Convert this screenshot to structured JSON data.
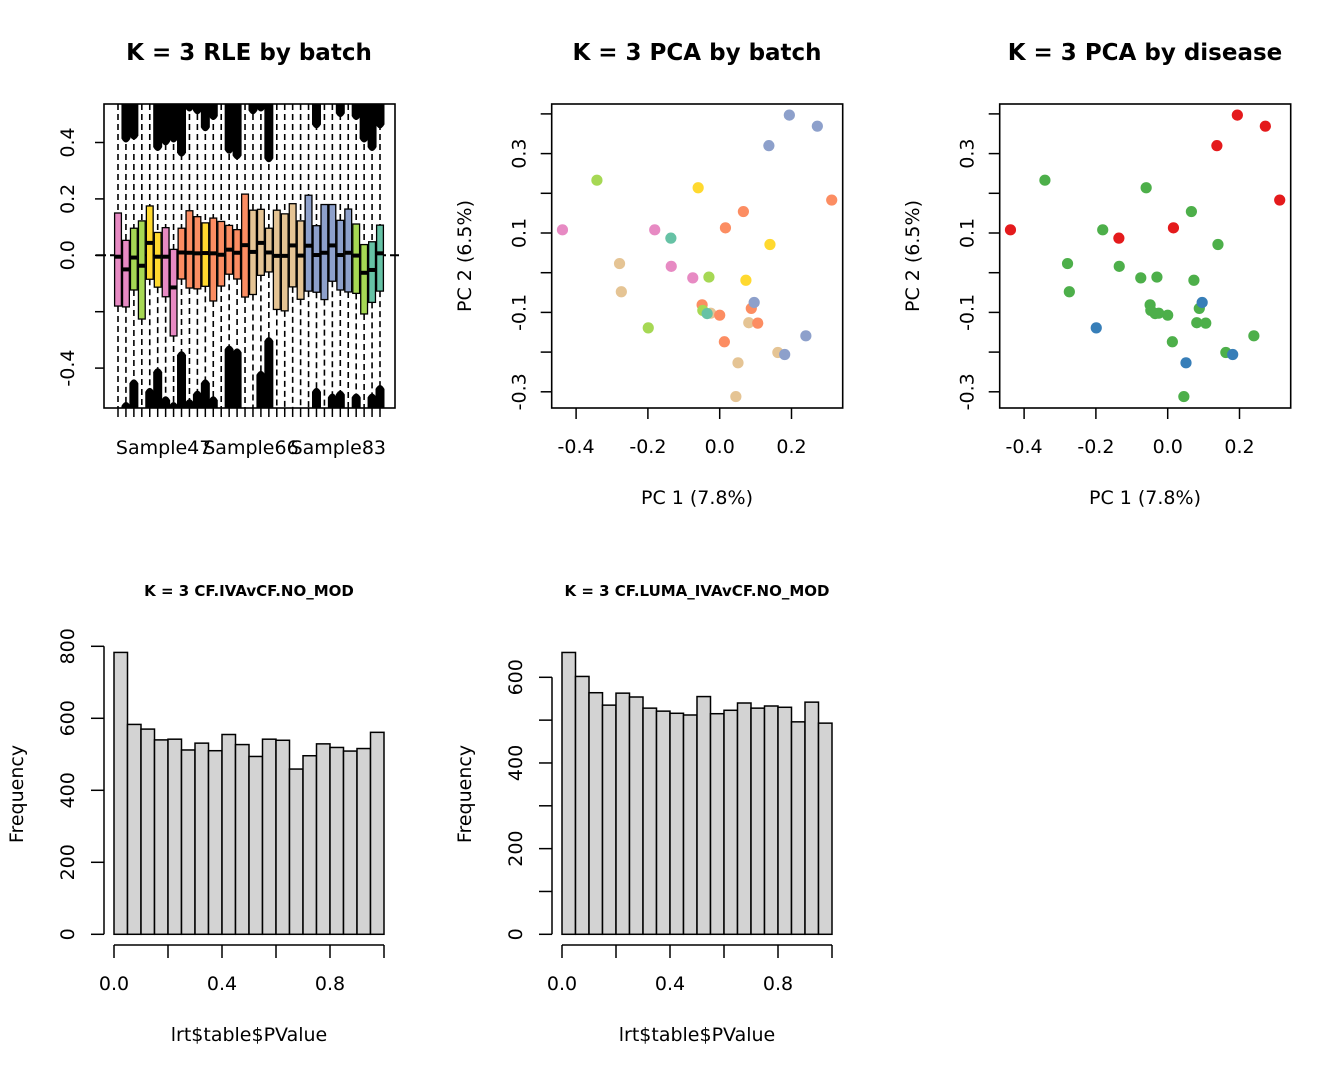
{
  "colors": {
    "set2_pink": "#E78AC3",
    "set2_lime": "#A6D854",
    "set2_yellow": "#FFD92F",
    "set2_orange": "#FC8D62",
    "set2_tan": "#E5C494",
    "set2_blue": "#8DA0CB",
    "set2_teal": "#66C2A5",
    "disease_red": "#E41A1C",
    "disease_blue": "#377EB8",
    "disease_green": "#4DAF4A",
    "hist_fill": "#D3D3D3"
  },
  "chart_data": [
    {
      "id": "rle",
      "type": "boxplot",
      "title": "K = 3 RLE by batch",
      "xlabel": "",
      "ylabel": "",
      "ylim": [
        -0.54,
        0.54
      ],
      "yticks": [
        -0.4,
        -0.2,
        0.0,
        0.2,
        0.4
      ],
      "ytick_labels": [
        "-0.4",
        "",
        "0.0",
        "0.2",
        "0.4"
      ],
      "x_tick_labels": [
        {
          "index": 6,
          "label": "Sample47"
        },
        {
          "index": 17,
          "label": "Sample66"
        },
        {
          "index": 28,
          "label": "Sample83"
        }
      ],
      "reference_line": 0,
      "boxes": [
        {
          "color": "set2_pink",
          "q1": -0.18,
          "median": -0.005,
          "q3": 0.15,
          "upper_outlier_floor": null,
          "lower_outlier_ceiling": null
        },
        {
          "color": "set2_pink",
          "q1": -0.183,
          "median": -0.05,
          "q3": 0.053,
          "upper_outlier_floor": 0.4,
          "lower_outlier_ceiling": -0.52
        },
        {
          "color": "set2_lime",
          "q1": -0.123,
          "median": -0.008,
          "q3": 0.096,
          "upper_outlier_floor": 0.41,
          "lower_outlier_ceiling": -0.44
        },
        {
          "color": "set2_lime",
          "q1": -0.226,
          "median": -0.037,
          "q3": 0.122,
          "upper_outlier_floor": null,
          "lower_outlier_ceiling": null
        },
        {
          "color": "set2_yellow",
          "q1": -0.085,
          "median": 0.044,
          "q3": 0.175,
          "upper_outlier_floor": null,
          "lower_outlier_ceiling": -0.47
        },
        {
          "color": "set2_yellow",
          "q1": -0.113,
          "median": -0.005,
          "q3": 0.081,
          "upper_outlier_floor": 0.37,
          "lower_outlier_ceiling": -0.4
        },
        {
          "color": "set2_pink",
          "q1": -0.147,
          "median": -0.005,
          "q3": 0.098,
          "upper_outlier_floor": 0.39,
          "lower_outlier_ceiling": -0.5
        },
        {
          "color": "set2_pink",
          "q1": -0.286,
          "median": -0.114,
          "q3": 0.021,
          "upper_outlier_floor": 0.4,
          "lower_outlier_ceiling": -0.52
        },
        {
          "color": "set2_orange",
          "q1": -0.084,
          "median": 0.01,
          "q3": 0.096,
          "upper_outlier_floor": 0.35,
          "lower_outlier_ceiling": -0.34
        },
        {
          "color": "set2_orange",
          "q1": -0.116,
          "median": 0.009,
          "q3": 0.158,
          "upper_outlier_floor": 0.51,
          "lower_outlier_ceiling": -0.51
        },
        {
          "color": "set2_orange",
          "q1": -0.119,
          "median": 0.007,
          "q3": 0.137,
          "upper_outlier_floor": 0.5,
          "lower_outlier_ceiling": -0.48
        },
        {
          "color": "set2_yellow",
          "q1": -0.11,
          "median": 0.008,
          "q3": 0.115,
          "upper_outlier_floor": 0.44,
          "lower_outlier_ceiling": -0.44
        },
        {
          "color": "set2_orange",
          "q1": -0.162,
          "median": 0.007,
          "q3": 0.132,
          "upper_outlier_floor": 0.48,
          "lower_outlier_ceiling": -0.5
        },
        {
          "color": "set2_orange",
          "q1": -0.109,
          "median": 0.002,
          "q3": 0.12,
          "upper_outlier_floor": null,
          "lower_outlier_ceiling": null
        },
        {
          "color": "set2_orange",
          "q1": -0.067,
          "median": 0.02,
          "q3": 0.106,
          "upper_outlier_floor": 0.36,
          "lower_outlier_ceiling": -0.32
        },
        {
          "color": "set2_orange",
          "q1": -0.084,
          "median": 0.009,
          "q3": 0.091,
          "upper_outlier_floor": 0.34,
          "lower_outlier_ceiling": -0.33
        },
        {
          "color": "set2_orange",
          "q1": -0.148,
          "median": 0.036,
          "q3": 0.217,
          "upper_outlier_floor": null,
          "lower_outlier_ceiling": null
        },
        {
          "color": "set2_tan",
          "q1": -0.139,
          "median": 0.012,
          "q3": 0.16,
          "upper_outlier_floor": 0.5,
          "lower_outlier_ceiling": null
        },
        {
          "color": "set2_tan",
          "q1": -0.071,
          "median": 0.044,
          "q3": 0.163,
          "upper_outlier_floor": 0.51,
          "lower_outlier_ceiling": -0.41
        },
        {
          "color": "set2_tan",
          "q1": -0.059,
          "median": 0.01,
          "q3": 0.096,
          "upper_outlier_floor": 0.33,
          "lower_outlier_ceiling": -0.29
        },
        {
          "color": "set2_tan",
          "q1": -0.192,
          "median": -0.002,
          "q3": 0.16,
          "upper_outlier_floor": null,
          "lower_outlier_ceiling": null
        },
        {
          "color": "set2_tan",
          "q1": -0.197,
          "median": -0.002,
          "q3": 0.147,
          "upper_outlier_floor": null,
          "lower_outlier_ceiling": null
        },
        {
          "color": "set2_tan",
          "q1": -0.112,
          "median": 0.035,
          "q3": 0.183,
          "upper_outlier_floor": null,
          "lower_outlier_ceiling": null
        },
        {
          "color": "set2_tan",
          "q1": -0.156,
          "median": -0.001,
          "q3": 0.122,
          "upper_outlier_floor": null,
          "lower_outlier_ceiling": null
        },
        {
          "color": "set2_blue",
          "q1": -0.127,
          "median": 0.034,
          "q3": 0.213,
          "upper_outlier_floor": null,
          "lower_outlier_ceiling": null
        },
        {
          "color": "set2_blue",
          "q1": -0.131,
          "median": 0.001,
          "q3": 0.105,
          "upper_outlier_floor": 0.45,
          "lower_outlier_ceiling": -0.47
        },
        {
          "color": "set2_blue",
          "q1": -0.157,
          "median": 0.009,
          "q3": 0.18,
          "upper_outlier_floor": null,
          "lower_outlier_ceiling": null
        },
        {
          "color": "set2_blue",
          "q1": -0.092,
          "median": 0.035,
          "q3": 0.18,
          "upper_outlier_floor": null,
          "lower_outlier_ceiling": -0.49
        },
        {
          "color": "set2_blue",
          "q1": -0.123,
          "median": 0.001,
          "q3": 0.124,
          "upper_outlier_floor": 0.49,
          "lower_outlier_ceiling": -0.48
        },
        {
          "color": "set2_blue",
          "q1": -0.13,
          "median": 0.009,
          "q3": 0.164,
          "upper_outlier_floor": null,
          "lower_outlier_ceiling": null
        },
        {
          "color": "set2_lime",
          "q1": -0.135,
          "median": -0.001,
          "q3": 0.111,
          "upper_outlier_floor": 0.48,
          "lower_outlier_ceiling": -0.49
        },
        {
          "color": "set2_lime",
          "q1": -0.208,
          "median": -0.062,
          "q3": 0.038,
          "upper_outlier_floor": 0.4,
          "lower_outlier_ceiling": null
        },
        {
          "color": "set2_teal",
          "q1": -0.167,
          "median": -0.052,
          "q3": 0.048,
          "upper_outlier_floor": 0.37,
          "lower_outlier_ceiling": -0.49
        },
        {
          "color": "set2_teal",
          "q1": -0.127,
          "median": 0.007,
          "q3": 0.107,
          "upper_outlier_floor": 0.45,
          "lower_outlier_ceiling": -0.46
        }
      ]
    },
    {
      "id": "pca_batch",
      "type": "scatter",
      "title": "K = 3 PCA by batch",
      "xlabel": "PC 1 (7.8%)",
      "ylabel": "PC 2 (6.5%)",
      "xlim": [
        -0.47,
        0.34
      ],
      "ylim": [
        -0.337,
        0.427
      ],
      "xticks": [
        -0.4,
        -0.2,
        0.0,
        0.2
      ],
      "xtick_labels": [
        "-0.4",
        "-0.2",
        "0.0",
        "0.2"
      ],
      "yticks": [
        -0.3,
        -0.2,
        -0.1,
        0.0,
        0.1,
        0.2,
        0.3,
        0.4
      ],
      "ytick_labels": [
        "-0.3",
        "",
        "-0.1",
        "",
        "0.1",
        "",
        "0.3",
        ""
      ],
      "points": [
        {
          "x": 0.194,
          "y": 0.397,
          "color": "set2_blue",
          "disease": "disease_red"
        },
        {
          "x": 0.272,
          "y": 0.369,
          "color": "set2_blue",
          "disease": "disease_red"
        },
        {
          "x": 0.137,
          "y": 0.32,
          "color": "set2_blue",
          "disease": "disease_red"
        },
        {
          "x": -0.342,
          "y": 0.233,
          "color": "set2_lime",
          "disease": "disease_green"
        },
        {
          "x": -0.06,
          "y": 0.214,
          "color": "set2_yellow",
          "disease": "disease_green"
        },
        {
          "x": 0.312,
          "y": 0.183,
          "color": "set2_orange",
          "disease": "disease_red"
        },
        {
          "x": 0.066,
          "y": 0.154,
          "color": "set2_orange",
          "disease": "disease_green"
        },
        {
          "x": -0.438,
          "y": 0.108,
          "color": "set2_pink",
          "disease": "disease_red"
        },
        {
          "x": -0.181,
          "y": 0.108,
          "color": "set2_pink",
          "disease": "disease_green"
        },
        {
          "x": 0.016,
          "y": 0.113,
          "color": "set2_orange",
          "disease": "disease_red"
        },
        {
          "x": -0.136,
          "y": 0.087,
          "color": "set2_teal",
          "disease": "disease_red"
        },
        {
          "x": 0.14,
          "y": 0.071,
          "color": "set2_yellow",
          "disease": "disease_green"
        },
        {
          "x": -0.279,
          "y": 0.023,
          "color": "set2_tan",
          "disease": "disease_green"
        },
        {
          "x": -0.135,
          "y": 0.016,
          "color": "set2_pink",
          "disease": "disease_green"
        },
        {
          "x": -0.075,
          "y": -0.013,
          "color": "set2_pink",
          "disease": "disease_green"
        },
        {
          "x": -0.03,
          "y": -0.011,
          "color": "set2_lime",
          "disease": "disease_green"
        },
        {
          "x": 0.073,
          "y": -0.019,
          "color": "set2_yellow",
          "disease": "disease_green"
        },
        {
          "x": -0.274,
          "y": -0.048,
          "color": "set2_tan",
          "disease": "disease_green"
        },
        {
          "x": 0.088,
          "y": -0.09,
          "color": "set2_orange",
          "disease": "disease_green"
        },
        {
          "x": 0.096,
          "y": -0.075,
          "color": "set2_blue",
          "disease": "disease_blue"
        },
        {
          "x": -0.049,
          "y": -0.081,
          "color": "set2_orange",
          "disease": "disease_green"
        },
        {
          "x": -0.047,
          "y": -0.095,
          "color": "set2_lime",
          "disease": "disease_green"
        },
        {
          "x": -0.025,
          "y": -0.102,
          "color": "set2_tan",
          "disease": "disease_green"
        },
        {
          "x": -0.035,
          "y": -0.103,
          "color": "set2_teal",
          "disease": "disease_green"
        },
        {
          "x": 0.0,
          "y": -0.107,
          "color": "set2_orange",
          "disease": "disease_green"
        },
        {
          "x": 0.081,
          "y": -0.126,
          "color": "set2_tan",
          "disease": "disease_green"
        },
        {
          "x": 0.106,
          "y": -0.127,
          "color": "set2_orange",
          "disease": "disease_green"
        },
        {
          "x": -0.199,
          "y": -0.139,
          "color": "set2_lime",
          "disease": "disease_blue"
        },
        {
          "x": 0.24,
          "y": -0.159,
          "color": "set2_blue",
          "disease": "disease_green"
        },
        {
          "x": 0.013,
          "y": -0.174,
          "color": "set2_orange",
          "disease": "disease_green"
        },
        {
          "x": 0.162,
          "y": -0.201,
          "color": "set2_tan",
          "disease": "disease_green"
        },
        {
          "x": 0.181,
          "y": -0.206,
          "color": "set2_blue",
          "disease": "disease_blue"
        },
        {
          "x": 0.051,
          "y": -0.227,
          "color": "set2_tan",
          "disease": "disease_blue"
        },
        {
          "x": 0.045,
          "y": -0.312,
          "color": "set2_tan",
          "disease": "disease_green"
        }
      ]
    },
    {
      "id": "pca_disease",
      "type": "scatter",
      "title": "K = 3 PCA by disease",
      "xlabel": "PC 1 (7.8%)",
      "ylabel": "PC 2 (6.5%)",
      "xlim": [
        -0.47,
        0.34
      ],
      "ylim": [
        -0.337,
        0.427
      ],
      "xticks": [
        -0.4,
        -0.2,
        0.0,
        0.2
      ],
      "xtick_labels": [
        "-0.4",
        "-0.2",
        "0.0",
        "0.2"
      ],
      "yticks": [
        -0.3,
        -0.2,
        -0.1,
        0.0,
        0.1,
        0.2,
        0.3,
        0.4
      ],
      "ytick_labels": [
        "-0.3",
        "",
        "-0.1",
        "",
        "0.1",
        "",
        "0.3",
        ""
      ],
      "color_field": "disease",
      "points_source": "pca_batch"
    },
    {
      "id": "hist1",
      "type": "bar",
      "title": "K = 3 CF.IVAvCF.NO_MOD",
      "xlabel": "lrt$table$PValue",
      "ylabel": "Frequency",
      "bin_width": 0.05,
      "xlim": [
        0,
        1
      ],
      "xticks": [
        0,
        0.2,
        0.4,
        0.6,
        0.8,
        1.0
      ],
      "xtick_labels": [
        "0.0",
        "",
        "0.4",
        "",
        "0.8",
        ""
      ],
      "ylim": [
        0,
        800
      ],
      "yticks": [
        0,
        200,
        400,
        600,
        800
      ],
      "ytick_labels": [
        "0",
        "200",
        "400",
        "600",
        "800"
      ],
      "values": [
        783,
        583,
        570,
        540,
        542,
        512,
        531,
        510,
        555,
        527,
        494,
        542,
        539,
        459,
        496,
        529,
        519,
        509,
        516,
        561
      ]
    },
    {
      "id": "hist2",
      "type": "bar",
      "title": "K = 3 CF.LUMA_IVAvCF.NO_MOD",
      "xlabel": "lrt$table$PValue",
      "ylabel": "Frequency",
      "bin_width": 0.05,
      "xlim": [
        0,
        1
      ],
      "xticks": [
        0,
        0.2,
        0.4,
        0.6,
        0.8,
        1.0
      ],
      "xtick_labels": [
        "0.0",
        "",
        "0.4",
        "",
        "0.8",
        ""
      ],
      "ylim": [
        0,
        600
      ],
      "yticks": [
        0,
        100,
        200,
        300,
        400,
        500,
        600
      ],
      "ytick_labels": [
        "0",
        "",
        "200",
        "",
        "400",
        "",
        "600"
      ],
      "values": [
        658,
        602,
        564,
        535,
        563,
        554,
        528,
        521,
        516,
        512,
        555,
        515,
        523,
        540,
        528,
        533,
        530,
        496,
        542,
        493
      ]
    }
  ]
}
